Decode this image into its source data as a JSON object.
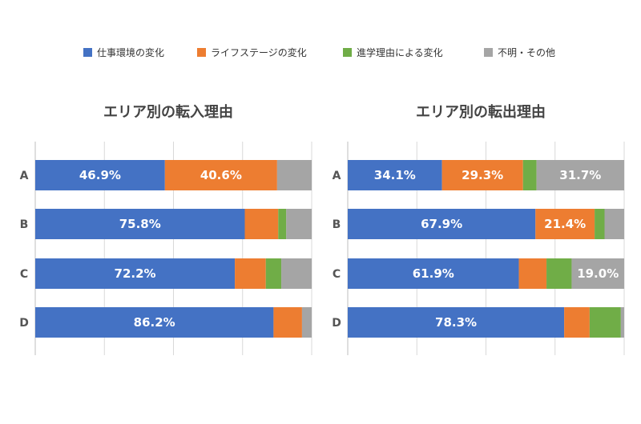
{
  "legend": [
    {
      "name": "仕事環境の変化",
      "color": "#4472C4"
    },
    {
      "name": "ライフステージの変化",
      "color": "#ED7D31"
    },
    {
      "name": "進学理由による変化",
      "color": "#70AD47"
    },
    {
      "name": "不明・その他",
      "color": "#A5A5A5"
    }
  ],
  "chart_data": [
    {
      "type": "bar",
      "orientation": "horizontal-stacked-100",
      "title": "エリア別の転入理由",
      "categories": [
        "A",
        "B",
        "C",
        "D"
      ],
      "series": [
        {
          "name": "仕事環境の変化",
          "values": [
            46.9,
            75.8,
            72.2,
            86.2
          ]
        },
        {
          "name": "ライフステージの変化",
          "values": [
            40.6,
            12.1,
            11.2,
            10.3
          ]
        },
        {
          "name": "進学理由による変化",
          "values": [
            0.0,
            2.9,
            5.6,
            0.0
          ]
        },
        {
          "name": "不明・その他",
          "values": [
            12.5,
            9.2,
            11.0,
            3.5
          ]
        }
      ],
      "data_labels": [
        [
          "46.9%",
          "40.6%",
          "",
          ""
        ],
        [
          "75.8%",
          "",
          "",
          ""
        ],
        [
          "72.2%",
          "",
          "",
          ""
        ],
        [
          "86.2%",
          "",
          "",
          ""
        ]
      ],
      "xlim": [
        0,
        100
      ],
      "grid": true,
      "legend_position": "top"
    },
    {
      "type": "bar",
      "orientation": "horizontal-stacked-100",
      "title": "エリア別の転出理由",
      "categories": [
        "A",
        "B",
        "C",
        "D"
      ],
      "series": [
        {
          "name": "仕事環境の変化",
          "values": [
            34.1,
            67.9,
            61.9,
            78.3
          ]
        },
        {
          "name": "ライフステージの変化",
          "values": [
            29.3,
            21.4,
            10.0,
            9.2
          ]
        },
        {
          "name": "進学理由による変化",
          "values": [
            4.9,
            3.6,
            9.1,
            11.3
          ]
        },
        {
          "name": "不明・その他",
          "values": [
            31.7,
            7.1,
            19.0,
            1.2
          ]
        }
      ],
      "data_labels": [
        [
          "34.1%",
          "29.3%",
          "",
          "31.7%"
        ],
        [
          "67.9%",
          "21.4%",
          "",
          ""
        ],
        [
          "61.9%",
          "",
          "",
          "19.0%"
        ],
        [
          "78.3%",
          "",
          "",
          ""
        ]
      ],
      "xlim": [
        0,
        100
      ],
      "grid": true,
      "legend_position": "top"
    }
  ]
}
